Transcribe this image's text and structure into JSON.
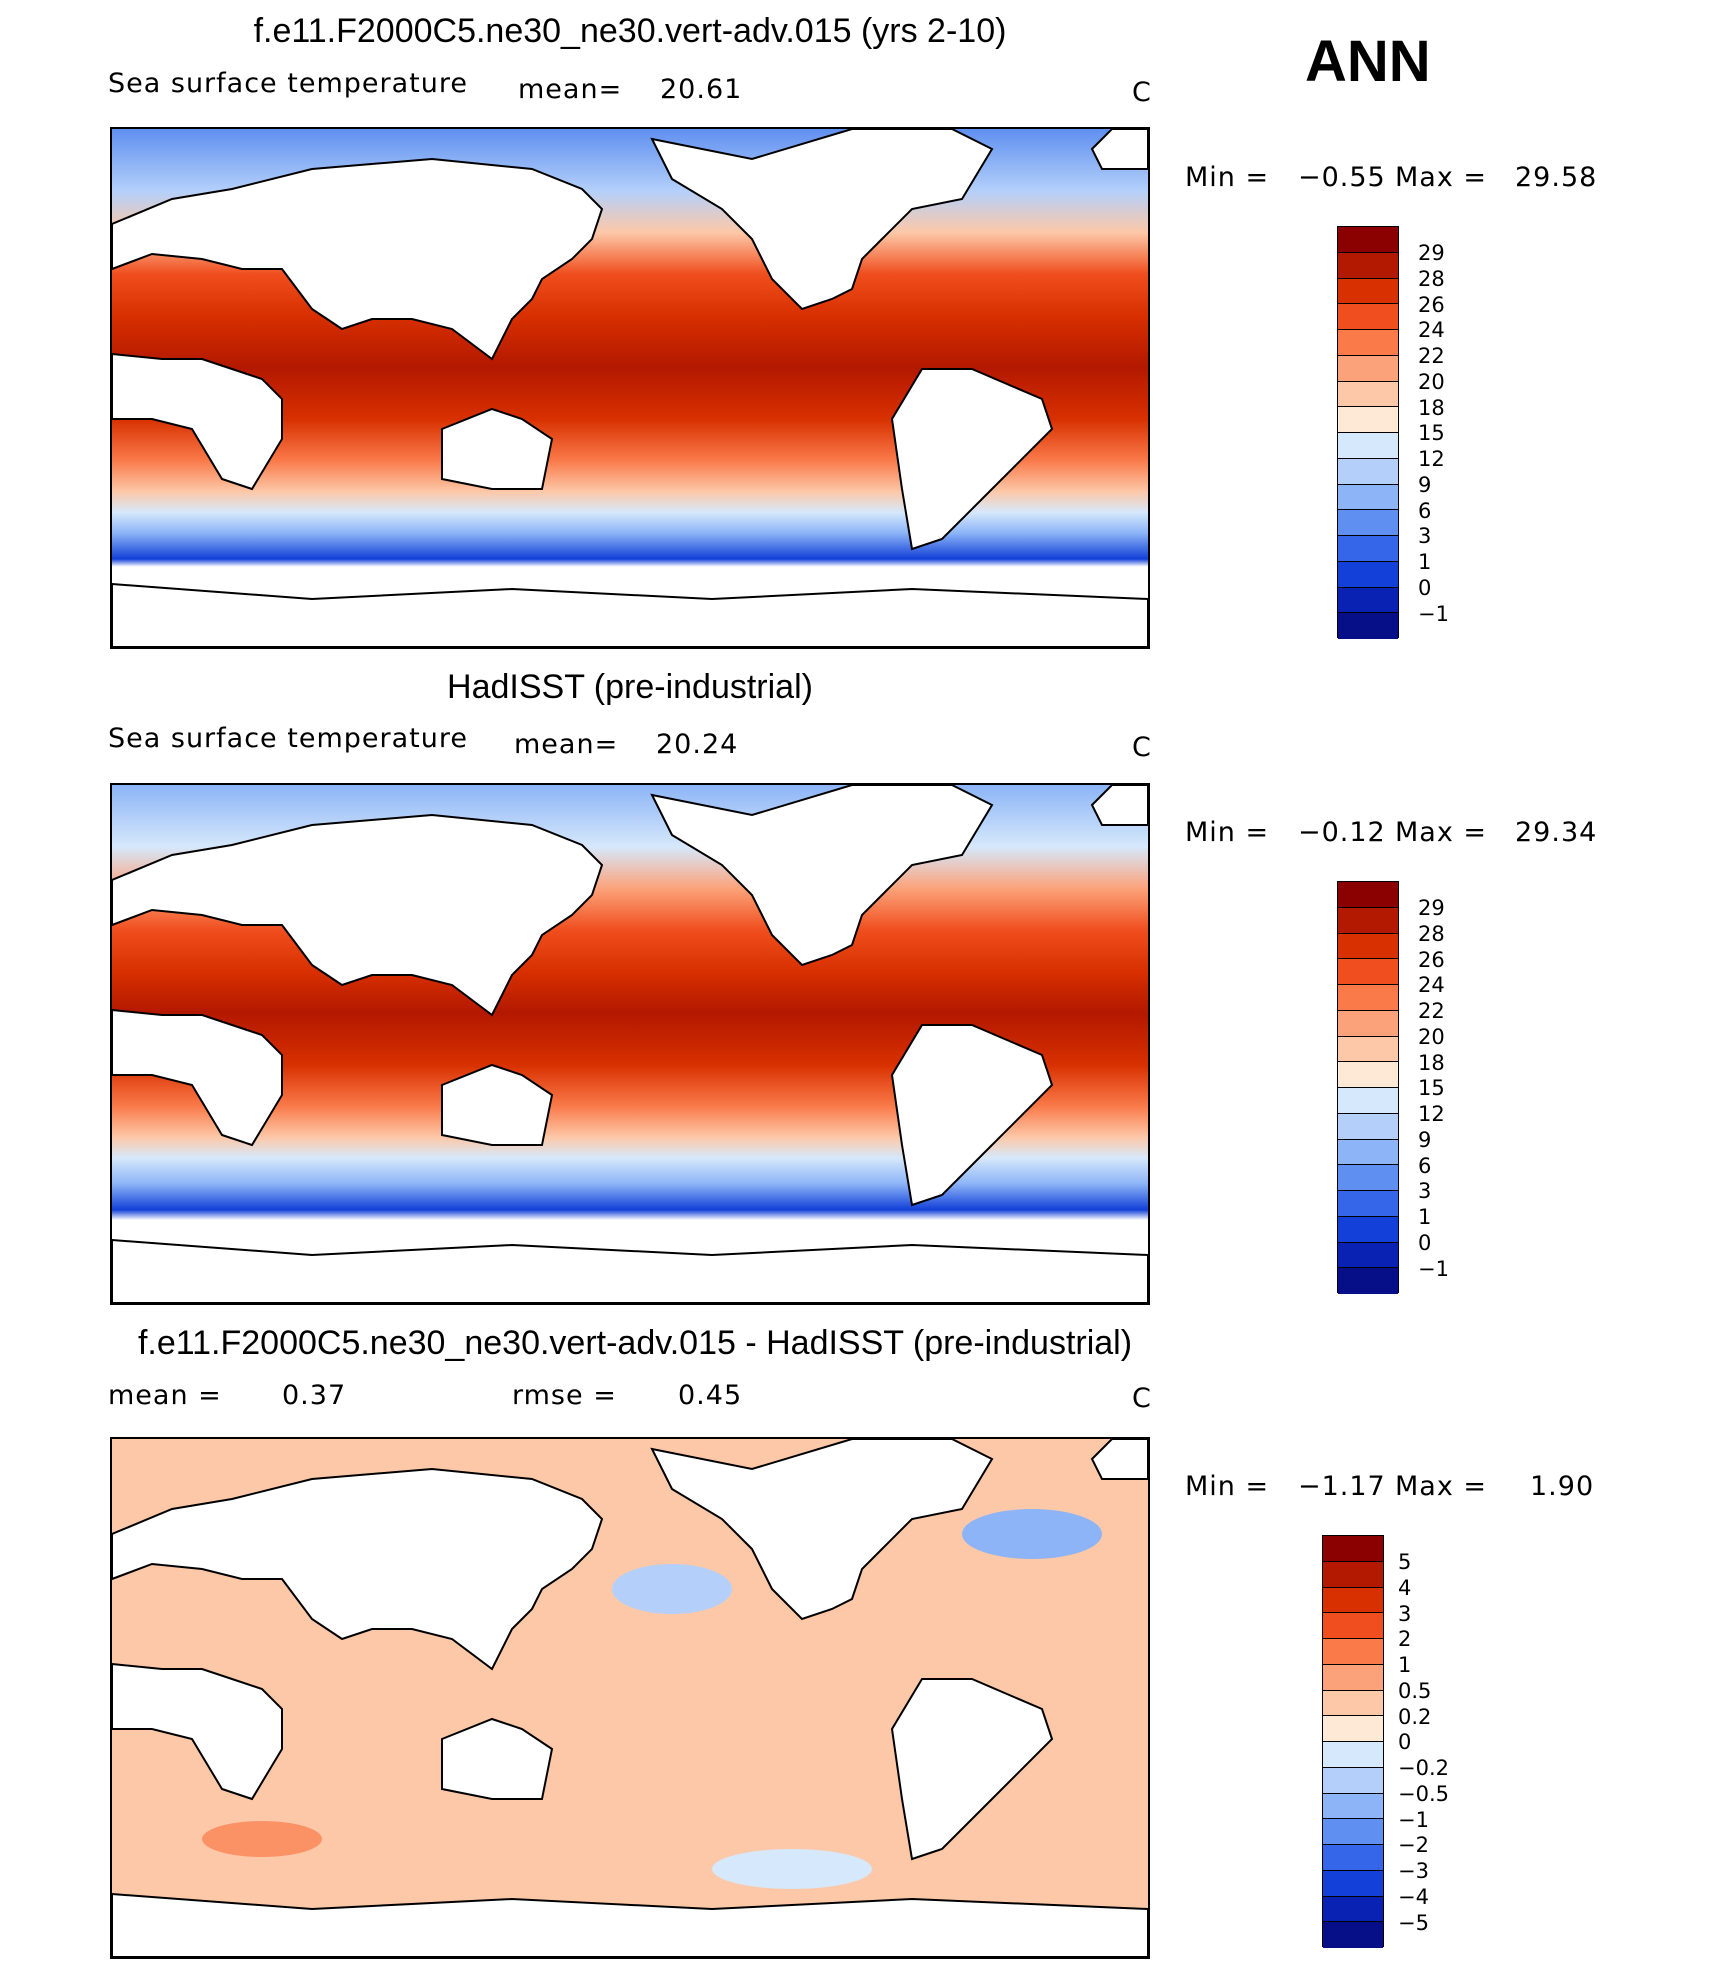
{
  "season": "ANN",
  "panels": [
    {
      "id": "model",
      "title": "f.e11.F2000C5.ne30_ne30.vert-adv.015 (yrs 2-10)",
      "variable": "Sea surface temperature",
      "stat_label": "mean=",
      "stat_value": "20.61",
      "units": "C",
      "min_label": "Min =",
      "min_value": "−0.55",
      "max_label": "Max =",
      "max_value": "29.58",
      "colorbar_labels": [
        "29",
        "28",
        "26",
        "24",
        "22",
        "20",
        "18",
        "15",
        "12",
        "9",
        "6",
        "3",
        "1",
        "0",
        "−1"
      ],
      "colorbar_colors": [
        "#8b0000",
        "#b31800",
        "#d83000",
        "#f04e1e",
        "#fa7a4a",
        "#fca27a",
        "#fdc8a8",
        "#fde9d6",
        "#d6e8fb",
        "#b4d0fa",
        "#8cb4f7",
        "#5f8ff0",
        "#3565e8",
        "#1240d8",
        "#0a22b4",
        "#060e88"
      ]
    },
    {
      "id": "obs",
      "title": "HadISST (pre-industrial)",
      "variable": "Sea surface temperature",
      "stat_label": "mean=",
      "stat_value": "20.24",
      "units": "C",
      "min_label": "Min =",
      "min_value": "−0.12",
      "max_label": "Max =",
      "max_value": "29.34",
      "colorbar_labels": [
        "29",
        "28",
        "26",
        "24",
        "22",
        "20",
        "18",
        "15",
        "12",
        "9",
        "6",
        "3",
        "1",
        "0",
        "−1"
      ],
      "colorbar_colors": [
        "#8b0000",
        "#b31800",
        "#d83000",
        "#f04e1e",
        "#fa7a4a",
        "#fca27a",
        "#fdc8a8",
        "#fde9d6",
        "#d6e8fb",
        "#b4d0fa",
        "#8cb4f7",
        "#5f8ff0",
        "#3565e8",
        "#1240d8",
        "#0a22b4",
        "#060e88"
      ]
    },
    {
      "id": "diff",
      "title": "f.e11.F2000C5.ne30_ne30.vert-adv.015 - HadISST (pre-industrial)",
      "stat_label": "mean =",
      "stat_value": "0.37",
      "rmse_label": "rmse =",
      "rmse_value": "0.45",
      "units": "C",
      "min_label": "Min =",
      "min_value": "−1.17",
      "max_label": "Max =",
      "max_value": "1.90",
      "colorbar_labels": [
        "5",
        "4",
        "3",
        "2",
        "1",
        "0.5",
        "0.2",
        "0",
        "−0.2",
        "−0.5",
        "−1",
        "−2",
        "−3",
        "−4",
        "−5"
      ],
      "colorbar_colors": [
        "#8b0000",
        "#b31800",
        "#d83000",
        "#f04e1e",
        "#fa7a4a",
        "#fca27a",
        "#fdc8a8",
        "#fde9d6",
        "#d6e8fb",
        "#b4d0fa",
        "#8cb4f7",
        "#5f8ff0",
        "#3565e8",
        "#1240d8",
        "#0a22b4",
        "#060e88"
      ]
    }
  ],
  "chart_data": [
    {
      "type": "heatmap",
      "title": "f.e11.F2000C5.ne30_ne30.vert-adv.015 (yrs 2-10)",
      "subtitle": "Sea surface temperature",
      "mean": 20.61,
      "units": "C",
      "min": -0.55,
      "max": 29.58,
      "contour_levels": [
        -1,
        0,
        1,
        3,
        6,
        9,
        12,
        15,
        18,
        20,
        22,
        24,
        26,
        28,
        29
      ]
    },
    {
      "type": "heatmap",
      "title": "HadISST (pre-industrial)",
      "subtitle": "Sea surface temperature",
      "mean": 20.24,
      "units": "C",
      "min": -0.12,
      "max": 29.34,
      "contour_levels": [
        -1,
        0,
        1,
        3,
        6,
        9,
        12,
        15,
        18,
        20,
        22,
        24,
        26,
        28,
        29
      ]
    },
    {
      "type": "heatmap",
      "title": "f.e11.F2000C5.ne30_ne30.vert-adv.015 - HadISST (pre-industrial)",
      "mean": 0.37,
      "rmse": 0.45,
      "units": "C",
      "min": -1.17,
      "max": 1.9,
      "contour_levels": [
        -5,
        -4,
        -3,
        -2,
        -1,
        -0.5,
        -0.2,
        0,
        0.2,
        0.5,
        1,
        2,
        3,
        4,
        5
      ]
    }
  ]
}
